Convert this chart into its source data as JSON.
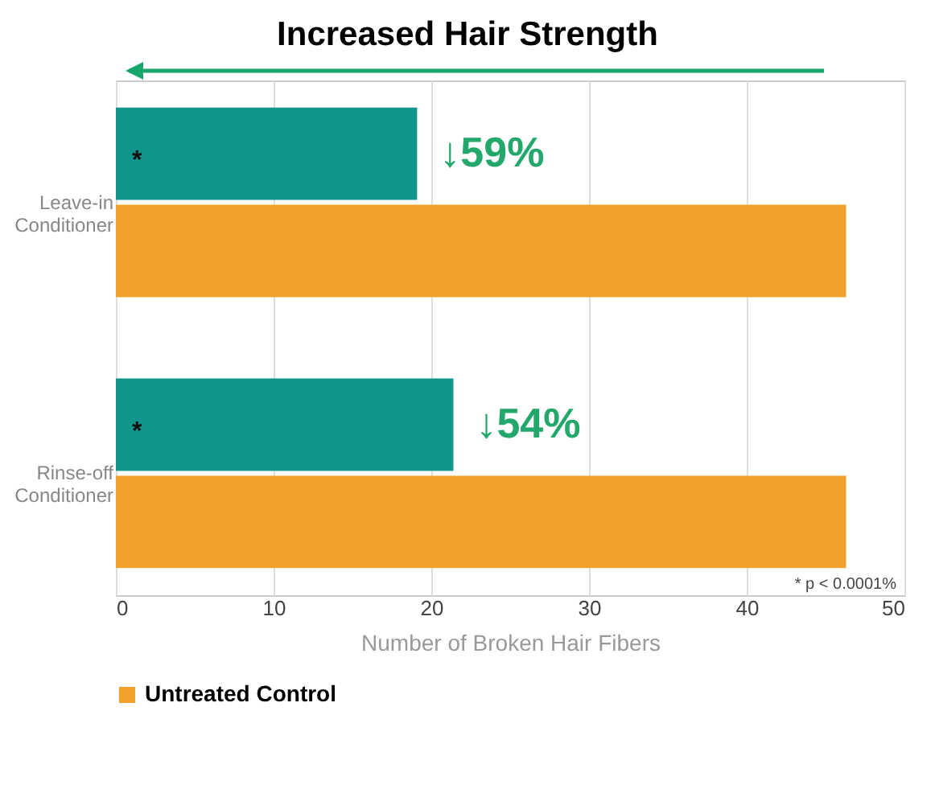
{
  "chart_data": {
    "type": "bar",
    "orientation": "horizontal",
    "title": "Increased Hair Strength",
    "xlabel": "Number of Broken Hair Fibers",
    "categories": [
      "Leave-in Conditioner",
      "Rinse-off Conditioner"
    ],
    "series": [
      {
        "color": "#12958c",
        "values": [
          19.1,
          21.4
        ]
      },
      {
        "name": "Untreated Control",
        "color": "#f0a12a",
        "values": [
          46.3,
          46.3
        ]
      }
    ],
    "xlim": [
      0,
      50
    ],
    "xticks": [
      0,
      10,
      20,
      30,
      40,
      50
    ],
    "grid": "x",
    "legend": "bottom",
    "annotations": [
      "↓59%",
      "↓54%",
      "*",
      "*",
      "* p < 0.0001%"
    ]
  }
}
